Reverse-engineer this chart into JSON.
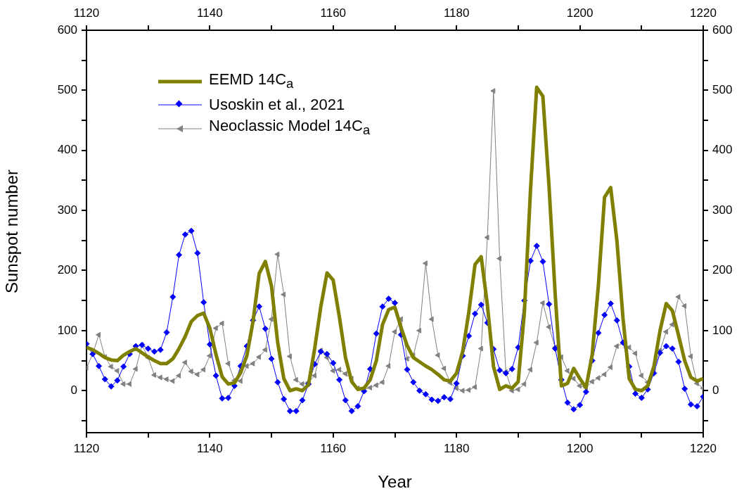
{
  "chart_data": {
    "type": "line",
    "xlabel": "Year",
    "ylabel": "Sunspot number",
    "x": [
      1120,
      1121,
      1122,
      1123,
      1124,
      1125,
      1126,
      1127,
      1128,
      1129,
      1130,
      1131,
      1132,
      1133,
      1134,
      1135,
      1136,
      1137,
      1138,
      1139,
      1140,
      1141,
      1142,
      1143,
      1144,
      1145,
      1146,
      1147,
      1148,
      1149,
      1150,
      1151,
      1152,
      1153,
      1154,
      1155,
      1156,
      1157,
      1158,
      1159,
      1160,
      1161,
      1162,
      1163,
      1164,
      1165,
      1166,
      1167,
      1168,
      1169,
      1170,
      1171,
      1172,
      1173,
      1174,
      1175,
      1176,
      1177,
      1178,
      1179,
      1180,
      1181,
      1182,
      1183,
      1184,
      1185,
      1186,
      1187,
      1188,
      1189,
      1190,
      1191,
      1192,
      1193,
      1194,
      1195,
      1196,
      1197,
      1198,
      1199,
      1200,
      1201,
      1202,
      1203,
      1204,
      1205,
      1206,
      1207,
      1208,
      1209,
      1210,
      1211,
      1212,
      1213,
      1214,
      1215,
      1216,
      1217,
      1218,
      1219,
      1220
    ],
    "series": [
      {
        "name": "EEMD 14C$_{a}$",
        "color": "#808000",
        "marker": "none",
        "values": [
          72,
          68,
          62,
          55,
          51,
          50,
          59,
          65,
          70,
          63,
          56,
          50,
          45,
          45,
          53,
          70,
          90,
          115,
          125,
          129,
          104,
          60,
          23,
          11,
          13,
          30,
          58,
          115,
          195,
          215,
          174,
          80,
          20,
          0,
          3,
          0,
          10,
          70,
          140,
          196,
          184,
          123,
          55,
          15,
          2,
          4,
          18,
          50,
          110,
          135,
          139,
          105,
          75,
          55,
          48,
          41,
          35,
          27,
          18,
          16,
          29,
          65,
          131,
          210,
          223,
          143,
          40,
          2,
          8,
          4,
          15,
          130,
          335,
          505,
          490,
          340,
          160,
          8,
          12,
          37,
          20,
          5,
          60,
          175,
          322,
          338,
          250,
          120,
          20,
          2,
          0,
          8,
          40,
          100,
          145,
          133,
          92,
          50,
          22,
          16,
          20
        ]
      },
      {
        "name": "Usoskin et al., 2021",
        "color": "#0000ff",
        "marker": "diamond",
        "values": [
          78,
          61,
          41,
          19,
          7,
          17,
          40,
          61,
          74,
          76,
          70,
          65,
          68,
          97,
          156,
          226,
          260,
          266,
          229,
          147,
          77,
          25,
          -13,
          -12,
          8,
          41,
          74,
          117,
          140,
          103,
          53,
          14,
          -14,
          -34,
          -34,
          -16,
          11,
          44,
          65,
          61,
          46,
          18,
          -16,
          -34,
          -26,
          -1,
          36,
          95,
          140,
          153,
          146,
          93,
          35,
          14,
          0,
          -6,
          -15,
          -17,
          -11,
          -14,
          12,
          58,
          91,
          128,
          143,
          113,
          69,
          34,
          29,
          36,
          72,
          150,
          216,
          241,
          215,
          144,
          70,
          18,
          -20,
          -31,
          -24,
          -2,
          50,
          96,
          126,
          145,
          117,
          80,
          40,
          -5,
          -12,
          2,
          29,
          63,
          74,
          70,
          48,
          3,
          -23,
          -26,
          -10
        ]
      },
      {
        "name": "Neoclassic Model 14C$_{a}$",
        "color": "#808080",
        "marker": "triangle",
        "values": [
          38,
          61,
          93,
          56,
          40,
          33,
          11,
          11,
          36,
          76,
          55,
          26,
          22,
          19,
          16,
          25,
          47,
          32,
          27,
          35,
          58,
          104,
          112,
          45,
          17,
          16,
          41,
          45,
          56,
          68,
          119,
          227,
          160,
          57,
          18,
          11,
          14,
          25,
          67,
          55,
          33,
          35,
          28,
          20,
          4,
          2,
          5,
          9,
          14,
          41,
          98,
          119,
          53,
          59,
          100,
          212,
          119,
          59,
          37,
          13,
          4,
          0,
          1,
          6,
          70,
          255,
          499,
          220,
          31,
          0,
          2,
          11,
          35,
          80,
          146,
          106,
          72,
          56,
          33,
          20,
          8,
          5,
          15,
          21,
          27,
          39,
          74,
          79,
          72,
          62,
          25,
          14,
          34,
          67,
          98,
          110,
          156,
          141,
          57,
          12,
          4
        ]
      }
    ],
    "xlim": [
      1120,
      1220
    ],
    "xticks": [
      1120,
      {
        "value": 1130,
        "label": null
      },
      1140,
      {
        "value": 1150,
        "label": null
      },
      1160,
      {
        "value": 1170,
        "label": null
      },
      1180,
      {
        "value": 1190,
        "label": null
      },
      1200,
      {
        "value": 1210,
        "label": null
      },
      1220
    ],
    "x2lim": [
      1120,
      1220
    ],
    "x2ticks": [
      1120,
      {
        "value": 1130,
        "label": null
      },
      1140,
      {
        "value": 1150,
        "label": null
      },
      1160,
      {
        "value": 1170,
        "label": null
      },
      1180,
      {
        "value": 1190,
        "label": null
      },
      1200,
      {
        "value": 1210,
        "label": null
      },
      1220
    ],
    "ylim": [
      -70,
      600
    ],
    "yticks": [
      {
        "value": -50,
        "label": null
      },
      0,
      {
        "value": 50,
        "label": null
      },
      100,
      {
        "value": 150,
        "label": null
      },
      200,
      {
        "value": 250,
        "label": null
      },
      300,
      {
        "value": 350,
        "label": null
      },
      400,
      {
        "value": 450,
        "label": null
      },
      500,
      {
        "value": 550,
        "label": null
      },
      600
    ],
    "y2lim": [
      -70,
      600
    ],
    "y2ticks": [
      {
        "value": -50,
        "label": null
      },
      0,
      {
        "value": 50,
        "label": null
      },
      100,
      {
        "value": 150,
        "label": null
      },
      200,
      {
        "value": 250,
        "label": null
      },
      300,
      {
        "value": 350,
        "label": null
      },
      400,
      {
        "value": 450,
        "label": null
      },
      500,
      {
        "value": 550,
        "label": null
      },
      600
    ],
    "legend": "top left"
  }
}
